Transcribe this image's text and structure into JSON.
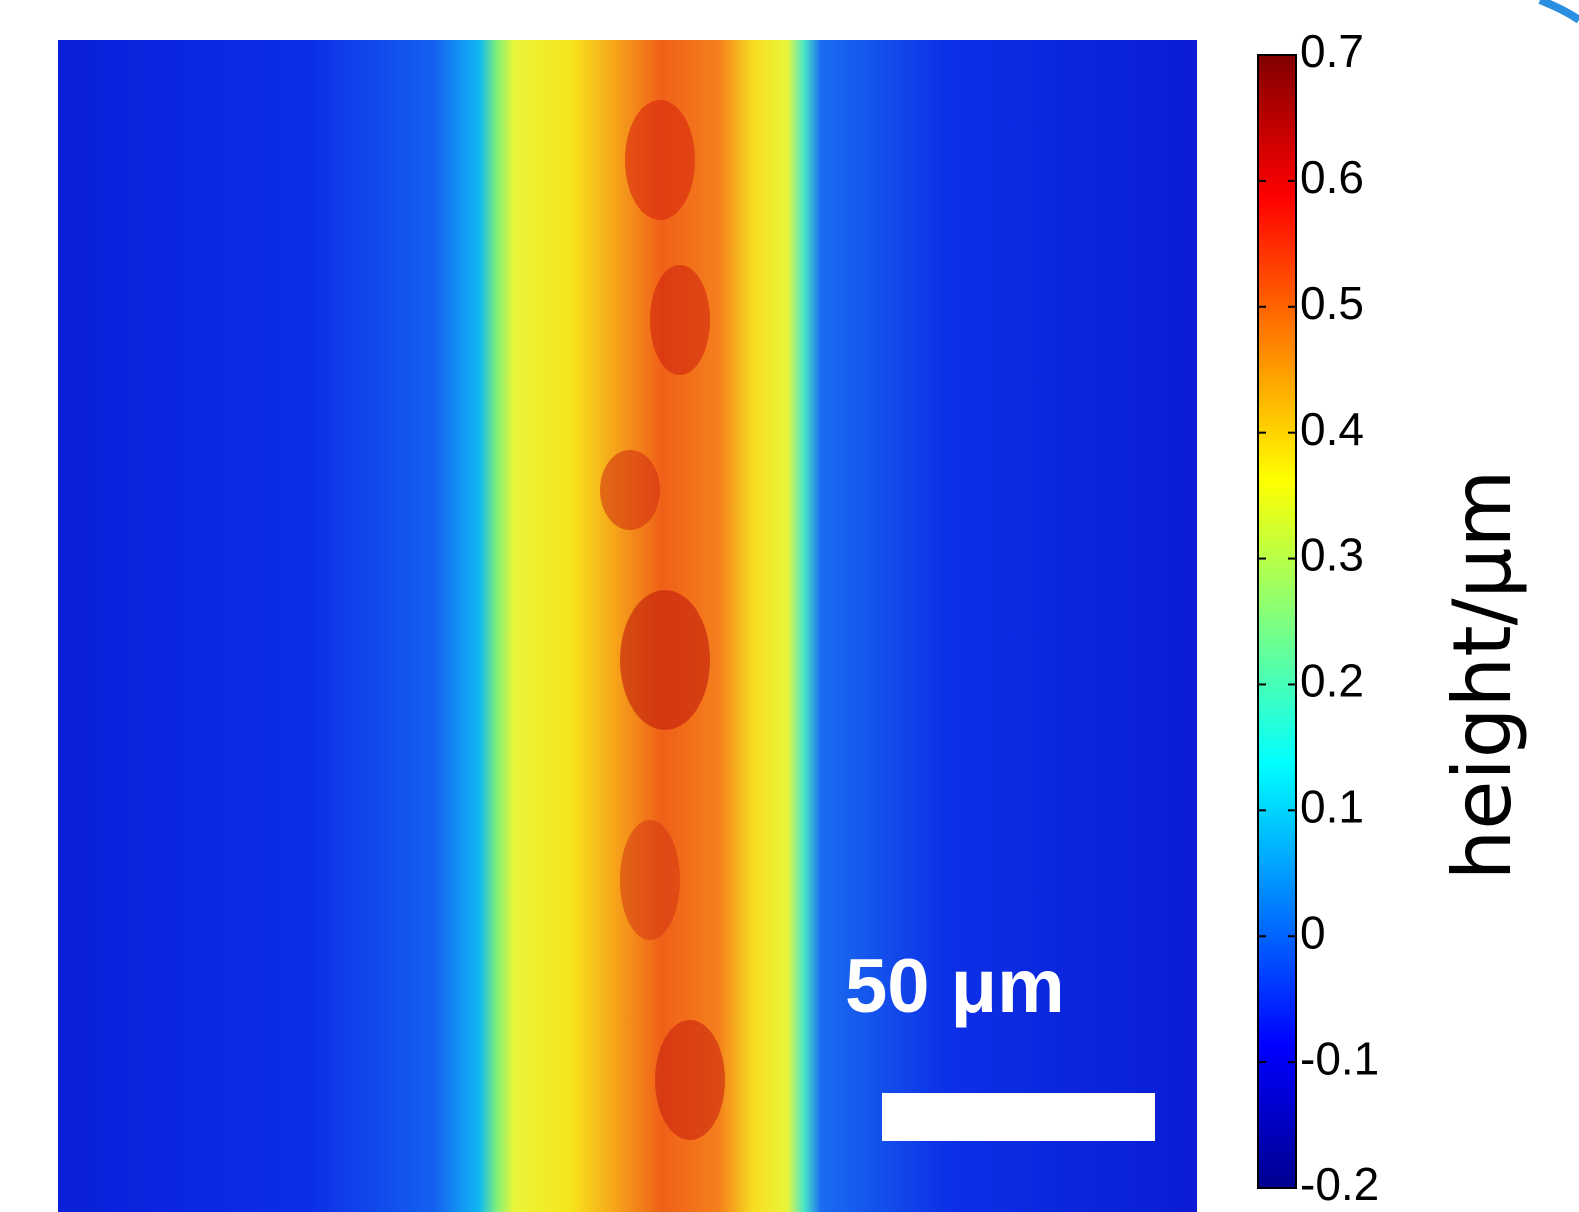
{
  "chart_data": {
    "type": "image",
    "colormap": "jet",
    "clim": [
      -0.2,
      0.7
    ],
    "cticks": [
      -0.2,
      -0.1,
      0,
      0.1,
      0.2,
      0.3,
      0.4,
      0.5,
      0.6,
      0.7
    ],
    "colorbar_label": "height/μm",
    "scale_bar_label": "50 μm"
  }
}
